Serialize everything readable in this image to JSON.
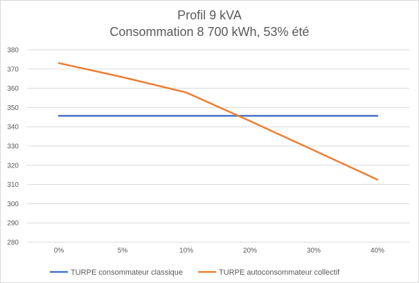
{
  "chart_data": {
    "type": "line",
    "title": "Profil 9 kVA",
    "subtitle": "Consommation 8 700 kWh, 53% été",
    "categories": [
      "0%",
      "5%",
      "10%",
      "20%",
      "30%",
      "40%"
    ],
    "ylim": [
      280,
      380
    ],
    "yticks": [
      280,
      290,
      300,
      310,
      320,
      330,
      340,
      350,
      360,
      370,
      380
    ],
    "grid": true,
    "legend_position": "bottom",
    "series": [
      {
        "name": "TURPE consommateur classique",
        "color": "#4472c4",
        "values": [
          345.7,
          345.7,
          345.7,
          345.7,
          345.7,
          345.7
        ]
      },
      {
        "name": "TURPE autoconsommateur collectif",
        "color": "#ed7d31",
        "values": [
          373.1,
          365.8,
          357.8,
          343.0,
          327.8,
          312.5
        ]
      }
    ]
  }
}
